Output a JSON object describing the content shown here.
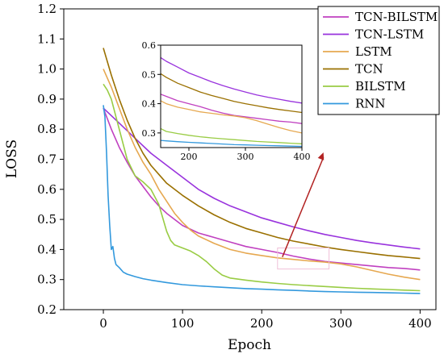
{
  "chart_data": {
    "type": "line",
    "xlabel": "Epoch",
    "ylabel": "LOSS",
    "xlim": [
      -50,
      420
    ],
    "ylim": [
      0.2,
      1.2
    ],
    "xticks": [
      0,
      100,
      200,
      300,
      400
    ],
    "yticks": [
      0.2,
      0.3,
      0.4,
      0.5,
      0.6,
      0.7,
      0.8,
      0.9,
      1.0,
      1.1,
      1.2
    ],
    "legend_position": "top-right",
    "series": [
      {
        "name": "TCN-BILSTM",
        "color": "#c040c0",
        "x": [
          0,
          10,
          20,
          30,
          40,
          50,
          60,
          70,
          80,
          90,
          100,
          120,
          140,
          160,
          180,
          200,
          220,
          240,
          260,
          280,
          300,
          320,
          340,
          360,
          380,
          400
        ],
        "y": [
          0.87,
          0.8,
          0.74,
          0.69,
          0.645,
          0.61,
          0.575,
          0.545,
          0.52,
          0.5,
          0.48,
          0.455,
          0.44,
          0.425,
          0.41,
          0.4,
          0.39,
          0.378,
          0.368,
          0.36,
          0.355,
          0.35,
          0.345,
          0.34,
          0.337,
          0.332
        ]
      },
      {
        "name": "TCN-LSTM",
        "color": "#9933dd",
        "x": [
          0,
          20,
          40,
          60,
          80,
          100,
          120,
          140,
          160,
          180,
          200,
          220,
          240,
          260,
          280,
          300,
          320,
          340,
          360,
          380,
          400
        ],
        "y": [
          0.87,
          0.82,
          0.77,
          0.72,
          0.68,
          0.64,
          0.6,
          0.57,
          0.545,
          0.525,
          0.505,
          0.49,
          0.475,
          0.462,
          0.45,
          0.44,
          0.43,
          0.422,
          0.415,
          0.408,
          0.402
        ]
      },
      {
        "name": "LSTM",
        "color": "#e6a850",
        "x": [
          0,
          10,
          20,
          30,
          40,
          50,
          60,
          70,
          80,
          90,
          100,
          110,
          120,
          140,
          160,
          180,
          200,
          220,
          240,
          260,
          280,
          300,
          320,
          340,
          360,
          380,
          400
        ],
        "y": [
          1.0,
          0.94,
          0.87,
          0.8,
          0.74,
          0.69,
          0.65,
          0.6,
          0.56,
          0.52,
          0.49,
          0.465,
          0.445,
          0.42,
          0.4,
          0.388,
          0.38,
          0.372,
          0.367,
          0.362,
          0.358,
          0.352,
          0.342,
          0.33,
          0.318,
          0.308,
          0.3
        ]
      },
      {
        "name": "TCN",
        "color": "#9a7000",
        "x": [
          0,
          10,
          20,
          30,
          40,
          50,
          60,
          70,
          80,
          90,
          100,
          120,
          140,
          160,
          180,
          200,
          220,
          240,
          260,
          280,
          300,
          320,
          340,
          360,
          380,
          400
        ],
        "y": [
          1.07,
          0.98,
          0.9,
          0.83,
          0.77,
          0.72,
          0.68,
          0.65,
          0.62,
          0.6,
          0.58,
          0.545,
          0.515,
          0.49,
          0.47,
          0.455,
          0.44,
          0.428,
          0.418,
          0.408,
          0.4,
          0.393,
          0.386,
          0.38,
          0.375,
          0.37
        ]
      },
      {
        "name": "BILSTM",
        "color": "#99cc44",
        "x": [
          0,
          5,
          10,
          20,
          30,
          40,
          50,
          60,
          70,
          80,
          85,
          90,
          100,
          110,
          120,
          130,
          140,
          150,
          160,
          180,
          200,
          220,
          240,
          260,
          280,
          300,
          320,
          340,
          360,
          380,
          400
        ],
        "y": [
          0.95,
          0.93,
          0.9,
          0.8,
          0.7,
          0.645,
          0.625,
          0.6,
          0.55,
          0.46,
          0.43,
          0.415,
          0.405,
          0.395,
          0.38,
          0.36,
          0.335,
          0.315,
          0.305,
          0.298,
          0.292,
          0.287,
          0.283,
          0.28,
          0.277,
          0.274,
          0.271,
          0.269,
          0.267,
          0.265,
          0.263
        ]
      },
      {
        "name": "RNN",
        "color": "#3399dd",
        "x": [
          0,
          2,
          4,
          6,
          8,
          10,
          12,
          14,
          16,
          20,
          25,
          30,
          40,
          50,
          60,
          80,
          100,
          120,
          140,
          160,
          180,
          200,
          220,
          240,
          260,
          280,
          300,
          320,
          340,
          360,
          380,
          400
        ],
        "y": [
          0.88,
          0.84,
          0.72,
          0.58,
          0.48,
          0.4,
          0.41,
          0.37,
          0.35,
          0.34,
          0.325,
          0.318,
          0.31,
          0.303,
          0.298,
          0.29,
          0.283,
          0.279,
          0.276,
          0.273,
          0.27,
          0.268,
          0.266,
          0.264,
          0.262,
          0.26,
          0.259,
          0.258,
          0.257,
          0.256,
          0.255,
          0.254
        ]
      }
    ],
    "inset": {
      "xlim": [
        150,
        400
      ],
      "ylim": [
        0.25,
        0.6
      ],
      "xticks": [
        200,
        300,
        400
      ],
      "yticks": [
        0.3,
        0.4,
        0.5,
        0.6
      ],
      "zoom_region": {
        "x": [
          200,
          400
        ],
        "y": [
          0.3,
          0.45
        ]
      }
    }
  }
}
